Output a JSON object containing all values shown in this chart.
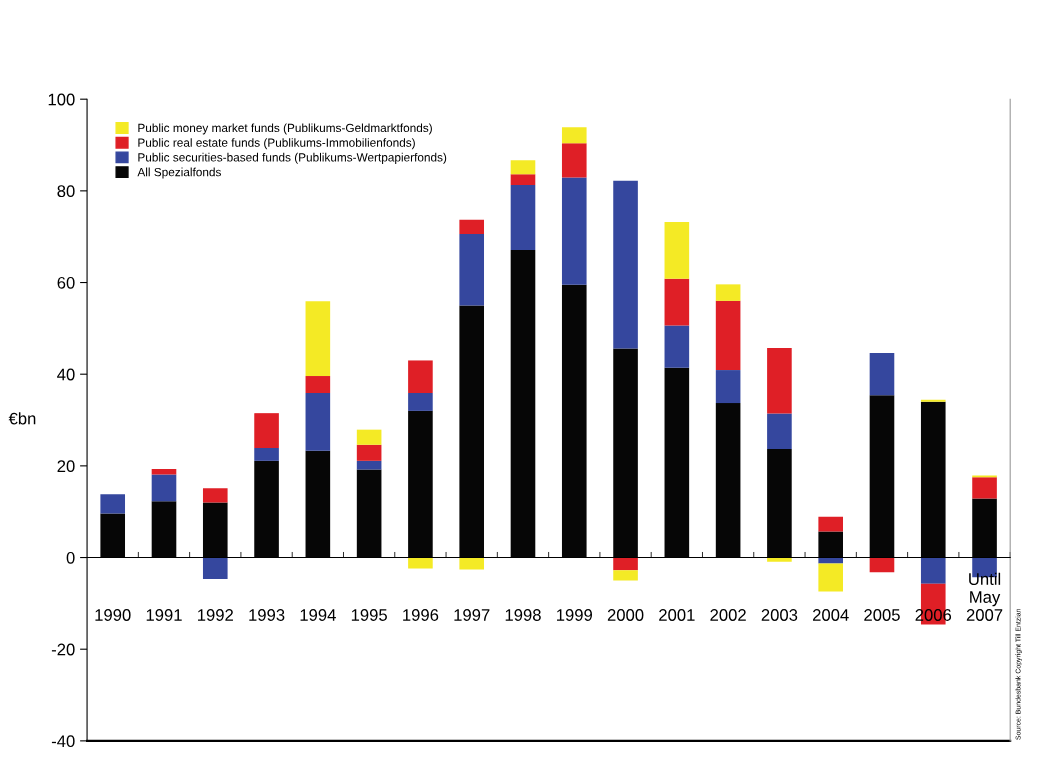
{
  "chart_data": {
    "type": "bar",
    "stacked": true,
    "ylabel": "€bn",
    "categories": [
      "1990",
      "1991",
      "1992",
      "1993",
      "1994",
      "1995",
      "1996",
      "1997",
      "1998",
      "1999",
      "2000",
      "2001",
      "2002",
      "2003",
      "2004",
      "2005",
      "2006",
      "Until\nMay\n2007"
    ],
    "series": [
      {
        "name": "All Spezialfonds",
        "color": "#060606",
        "values": [
          9.6,
          12.3,
          12.0,
          21.1,
          23.3,
          19.2,
          32.0,
          55.0,
          67.1,
          59.5,
          45.6,
          41.4,
          33.7,
          23.7,
          5.7,
          35.4,
          34.0,
          12.9
        ]
      },
      {
        "name": "Public securities-based funds (Publikums-Wertpapierfonds)",
        "color": "#35479e",
        "values": [
          4.2,
          5.8,
          -4.7,
          2.8,
          12.6,
          1.9,
          3.9,
          15.6,
          14.2,
          23.4,
          36.6,
          9.2,
          7.2,
          7.7,
          -1.3,
          9.2,
          -5.7,
          -4.3
        ]
      },
      {
        "name": "Public real estate funds (Publikums-Immobilienfonds)",
        "color": "#df1f26",
        "values": [
          null,
          1.2,
          3.1,
          7.6,
          3.7,
          3.5,
          7.1,
          3.1,
          2.3,
          7.5,
          -2.8,
          10.2,
          15.1,
          14.3,
          3.2,
          -3.2,
          -8.9,
          4.6
        ]
      },
      {
        "name": "Public money market funds (Publikums-Geldmarktfonds)",
        "color": "#f4ea25",
        "values": [
          null,
          null,
          null,
          null,
          16.3,
          3.3,
          -2.4,
          -2.6,
          3.1,
          3.5,
          -2.2,
          12.4,
          3.6,
          -0.9,
          -6.1,
          null,
          0.4,
          0.4
        ]
      }
    ],
    "ylim": [
      -40,
      100
    ],
    "yticks": [
      -40,
      -20,
      0,
      20,
      40,
      60,
      80,
      100
    ],
    "legend": "top left",
    "grid": false,
    "annotations": [
      "Source: Bundesbank Copyright Till Entzian"
    ]
  }
}
